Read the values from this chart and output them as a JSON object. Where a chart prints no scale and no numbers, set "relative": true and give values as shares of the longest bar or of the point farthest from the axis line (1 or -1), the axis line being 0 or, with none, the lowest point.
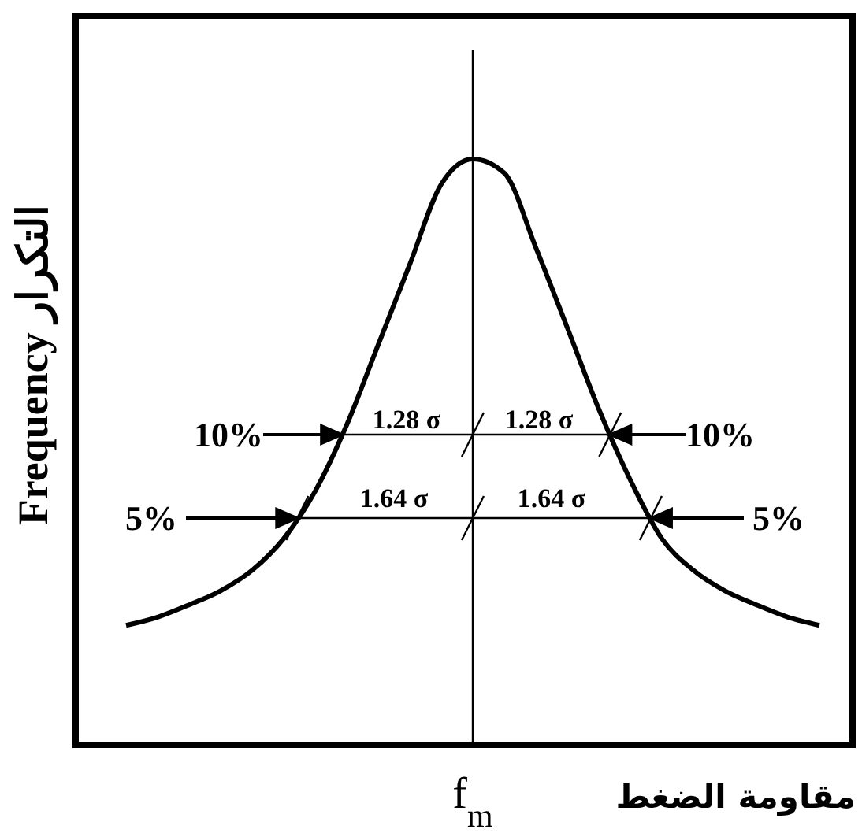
{
  "chart_data": {
    "type": "line",
    "relative": true,
    "xlabel": "مقاومة الضغط",
    "ylabel": "Frequency   التكرار",
    "categories": [
      null,
      null,
      null,
      null,
      null,
      null,
      null,
      null,
      null,
      null,
      null,
      null,
      null,
      null,
      null,
      null,
      null,
      null,
      null,
      null,
      null,
      null,
      null
    ],
    "series": [
      {
        "color": "#000000",
        "values": [
          0.204,
          0.218,
          0.239,
          0.263,
          0.298,
          0.352,
          0.433,
          0.546,
          0.683,
          0.82,
          0.957,
          1,
          0.976,
          0.849,
          0.712,
          0.573,
          0.452,
          0.352,
          0.298,
          0.263,
          0.239,
          0.218,
          0.204
        ]
      }
    ],
    "annotations": [
      "f$_{m}$",
      "10%",
      "1.28 σ",
      "1.28 σ",
      "10%",
      "5%",
      "1.64 σ",
      "1.64 σ",
      "5%"
    ],
    "marker": "none",
    "line_style": "solid"
  }
}
